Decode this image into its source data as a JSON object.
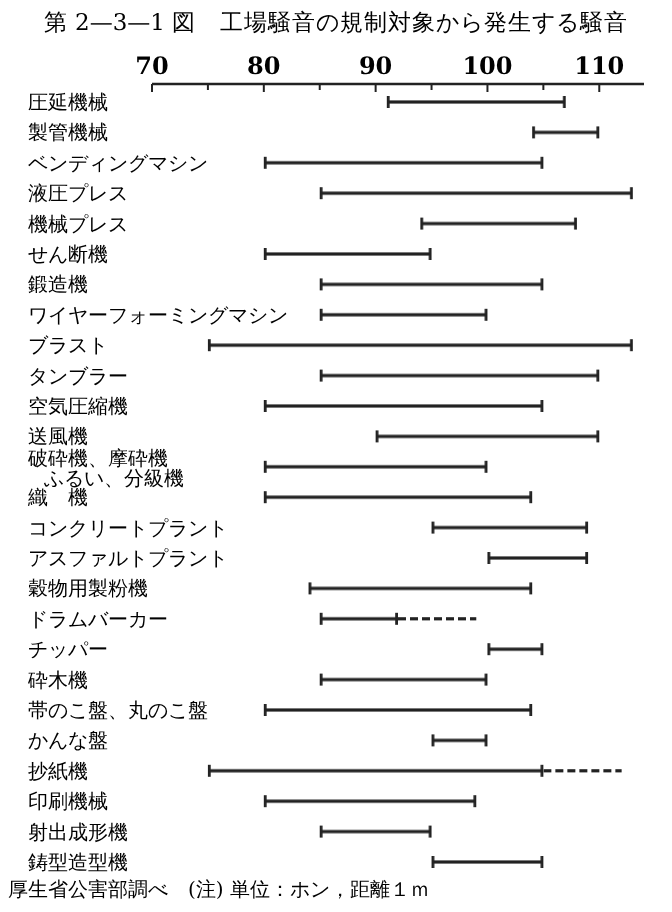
{
  "chart_data": {
    "type": "bar",
    "orientation": "horizontal",
    "title": "第 2—3—1 図　工場騒音の規制対象から発生する騒音",
    "categories": [
      "圧延機械",
      "製管機械",
      "ベンディングマシン",
      "液圧プレス",
      "機械プレス",
      "せん断機",
      "鍛造機",
      "ワイヤーフォーミングマシン",
      "ブラスト",
      "タンブラー",
      "空気圧縮機",
      "送風機",
      "破砕機、摩砕機ふるい、分級機",
      "織　機",
      "コンクリートプラント",
      "アスファルトプラント",
      "穀物用製粉機",
      "ドラムバーカー",
      "チッパー",
      "砕木機",
      "帯のこ盤、丸のこ盤",
      "かんな盤",
      "抄紙機",
      "印刷機械",
      "射出成形機",
      "鋳型造型機"
    ],
    "series": [
      {
        "color": "#222222",
        "line_style": "solid",
        "base": [
          91,
          104,
          80,
          85,
          94,
          80,
          85,
          85,
          75,
          85,
          80,
          90,
          80,
          80,
          95,
          100,
          84,
          85,
          100,
          85,
          80,
          95,
          75,
          80,
          85,
          95
        ],
        "values": [
          16,
          6,
          25,
          28,
          14,
          15,
          20,
          15,
          38,
          25,
          25,
          20,
          20,
          24,
          14,
          9,
          20,
          7,
          5,
          15,
          24,
          5,
          30,
          19,
          10,
          10
        ]
      },
      {
        "color": "#222222",
        "line_style": "dashed",
        "base": [
          null,
          null,
          null,
          null,
          null,
          null,
          null,
          null,
          null,
          null,
          null,
          null,
          null,
          null,
          null,
          null,
          null,
          92,
          null,
          null,
          null,
          null,
          105,
          null,
          null,
          null
        ],
        "values": [
          null,
          null,
          null,
          null,
          null,
          null,
          null,
          null,
          null,
          null,
          null,
          null,
          null,
          null,
          null,
          null,
          null,
          7,
          null,
          null,
          null,
          null,
          7,
          null,
          null,
          null
        ]
      }
    ],
    "xlim": [
      70,
      114
    ],
    "xticks": [
      70,
      {
        "value": 75,
        "label": null
      },
      80,
      {
        "value": 85,
        "label": null
      },
      90,
      {
        "value": 95,
        "label": null
      },
      100,
      {
        "value": 105,
        "label": null
      },
      110
    ],
    "annotations": [
      "厚生省公害部調べ　(注) 単位：ホン，距離１ｍ"
    ]
  }
}
